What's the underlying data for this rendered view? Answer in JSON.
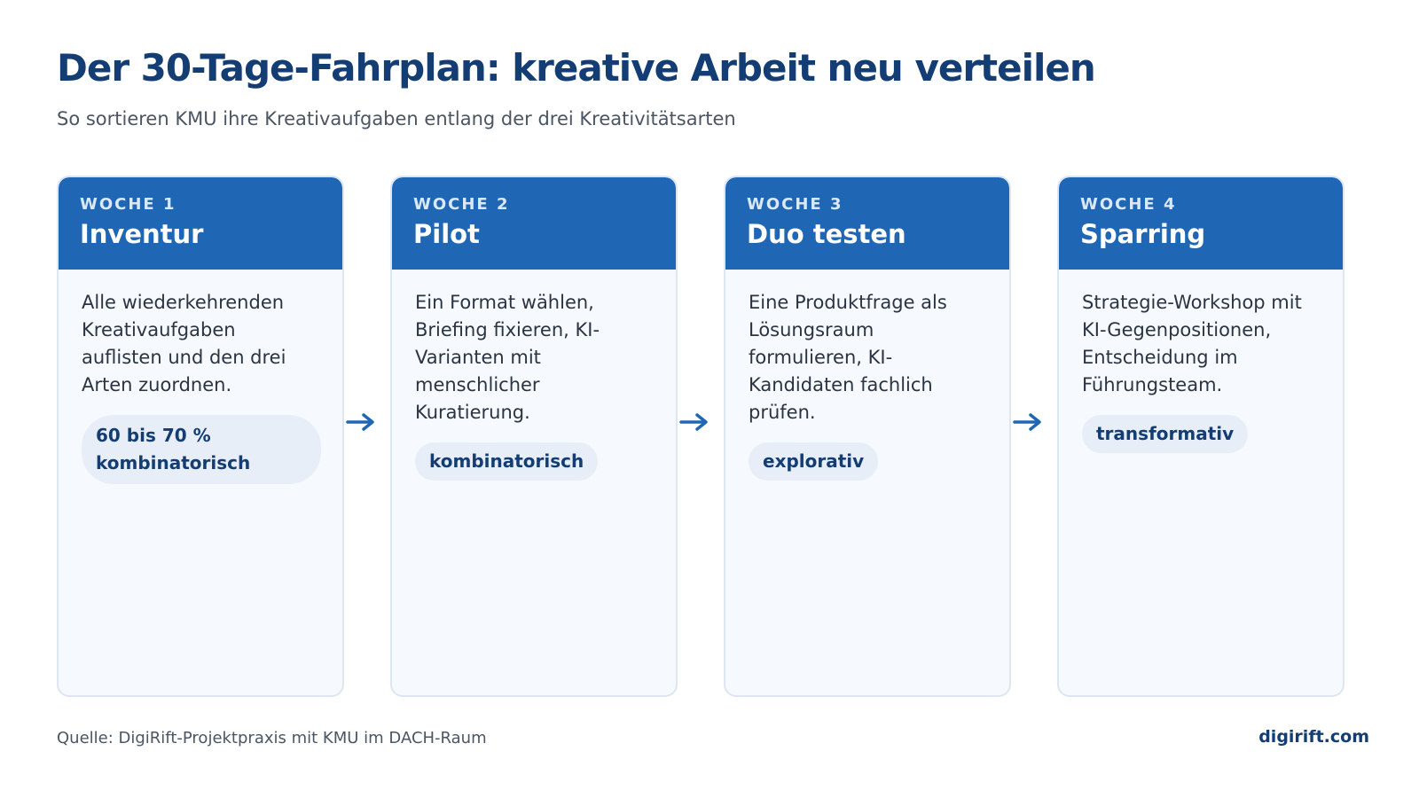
{
  "title": "Der 30-Tage-Fahrplan: kreative Arbeit neu verteilen",
  "subtitle": "So sortieren KMU ihre Kreativaufgaben entlang der drei Kreativitätsarten",
  "steps": [
    {
      "week": "WOCHE 1",
      "phase": "Inventur",
      "description": "Alle wiederkehrenden Kreativaufgaben auflisten und den drei Arten zuordnen.",
      "tag": "60 bis 70 % kombinatorisch"
    },
    {
      "week": "WOCHE 2",
      "phase": "Pilot",
      "description": "Ein Format wählen, Briefing fixieren, KI-Varianten mit menschlicher Kuratierung.",
      "tag": "kombinatorisch"
    },
    {
      "week": "WOCHE 3",
      "phase": "Duo testen",
      "description": "Eine Produktfrage als Lösungsraum formulieren, KI-Kandidaten fachlich prüfen.",
      "tag": "explorativ"
    },
    {
      "week": "WOCHE 4",
      "phase": "Sparring",
      "description": "Strategie-Workshop mit KI-Gegenpositionen, Entscheidung im Führungsteam.",
      "tag": "transformativ"
    }
  ],
  "source": "Quelle: DigiRift-Projektpraxis mit KMU im DACH-Raum",
  "brand": "digirift.com",
  "colors": {
    "header_blue": "#1f66b5",
    "title_navy": "#133d73",
    "card_bg": "#f6f9fd",
    "tag_bg": "#e8eef7"
  },
  "icons": [
    "arrow-right-icon"
  ]
}
